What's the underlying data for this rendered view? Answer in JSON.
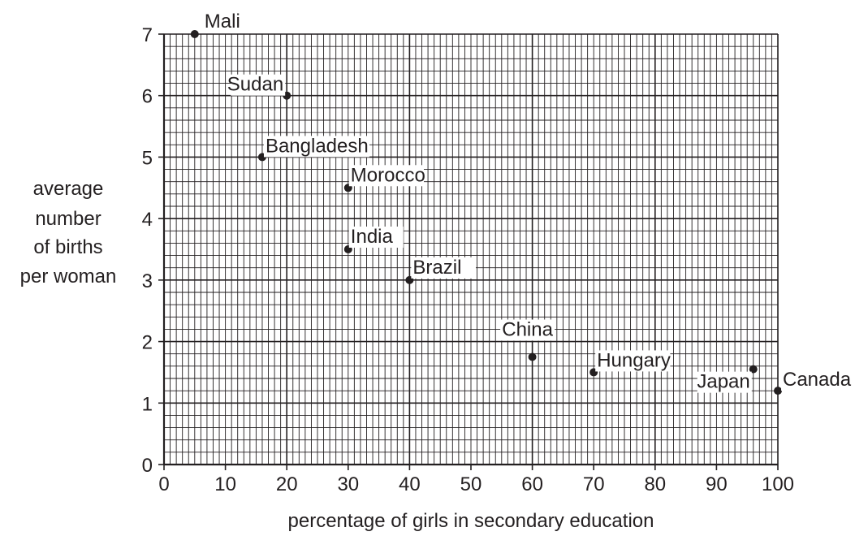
{
  "chart_data": {
    "type": "scatter",
    "title": "",
    "xlabel": "percentage of girls in secondary education",
    "ylabel_lines": [
      "average",
      "number",
      "of births",
      "per woman"
    ],
    "xlim": [
      0,
      100
    ],
    "ylim": [
      0,
      7
    ],
    "x_ticks": [
      0,
      10,
      20,
      30,
      40,
      50,
      60,
      70,
      80,
      90,
      100
    ],
    "y_ticks": [
      0,
      1,
      2,
      3,
      4,
      5,
      6,
      7
    ],
    "grid": true,
    "grid_minor_x": 1,
    "grid_minor_y": 0.2,
    "marker_color": "#231f20",
    "grid_color": "#231f20",
    "points": [
      {
        "label": "Mali",
        "x": 5,
        "y": 7.0
      },
      {
        "label": "Sudan",
        "x": 20,
        "y": 6.0
      },
      {
        "label": "Bangladesh",
        "x": 16,
        "y": 5.0
      },
      {
        "label": "Morocco",
        "x": 30,
        "y": 4.5
      },
      {
        "label": "India",
        "x": 30,
        "y": 3.5
      },
      {
        "label": "Brazil",
        "x": 40,
        "y": 3.0
      },
      {
        "label": "China",
        "x": 60,
        "y": 1.75
      },
      {
        "label": "Hungary",
        "x": 70,
        "y": 1.5
      },
      {
        "label": "Japan",
        "x": 96,
        "y": 1.55
      },
      {
        "label": "Canada",
        "x": 100,
        "y": 1.2
      }
    ]
  }
}
